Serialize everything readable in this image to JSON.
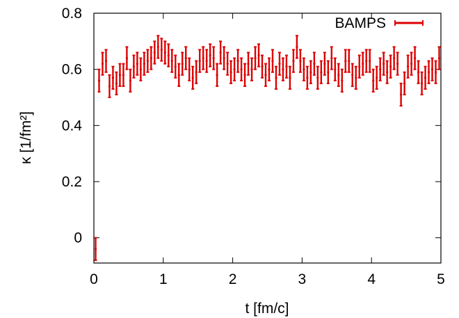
{
  "chart_data": {
    "type": "scatter",
    "title": "",
    "xlabel": "t [fm/c]",
    "ylabel": "κ [1/fm²]",
    "xlim": [
      0,
      5
    ],
    "ylim": [
      -0.09,
      0.8
    ],
    "xticks": [
      0,
      1,
      2,
      3,
      4,
      5
    ],
    "yticks": [
      0,
      0.2,
      0.4,
      0.6,
      0.8
    ],
    "grid": false,
    "legend_position": "top-right",
    "series": [
      {
        "name": "BAMPS",
        "color": "#dd0000",
        "x": [
          0.025,
          0.075,
          0.125,
          0.175,
          0.225,
          0.275,
          0.325,
          0.375,
          0.425,
          0.475,
          0.525,
          0.575,
          0.625,
          0.675,
          0.725,
          0.775,
          0.825,
          0.875,
          0.925,
          0.975,
          1.025,
          1.075,
          1.125,
          1.175,
          1.225,
          1.275,
          1.325,
          1.375,
          1.425,
          1.475,
          1.525,
          1.575,
          1.625,
          1.675,
          1.725,
          1.775,
          1.825,
          1.875,
          1.925,
          1.975,
          2.025,
          2.075,
          2.125,
          2.175,
          2.225,
          2.275,
          2.325,
          2.375,
          2.425,
          2.475,
          2.525,
          2.575,
          2.625,
          2.675,
          2.725,
          2.775,
          2.825,
          2.875,
          2.925,
          2.975,
          3.025,
          3.075,
          3.125,
          3.175,
          3.225,
          3.275,
          3.325,
          3.375,
          3.425,
          3.475,
          3.525,
          3.575,
          3.625,
          3.675,
          3.725,
          3.775,
          3.825,
          3.875,
          3.925,
          3.975,
          4.025,
          4.075,
          4.125,
          4.175,
          4.225,
          4.275,
          4.325,
          4.375,
          4.425,
          4.475,
          4.525,
          4.575,
          4.625,
          4.675,
          4.725,
          4.775,
          4.825,
          4.875,
          4.925,
          4.975
        ],
        "y": [
          -0.04,
          0.56,
          0.62,
          0.63,
          0.54,
          0.57,
          0.55,
          0.58,
          0.58,
          0.64,
          0.56,
          0.61,
          0.62,
          0.6,
          0.62,
          0.63,
          0.64,
          0.66,
          0.68,
          0.67,
          0.66,
          0.65,
          0.63,
          0.61,
          0.58,
          0.62,
          0.64,
          0.6,
          0.57,
          0.59,
          0.63,
          0.64,
          0.63,
          0.65,
          0.64,
          0.58,
          0.66,
          0.64,
          0.62,
          0.59,
          0.6,
          0.63,
          0.6,
          0.58,
          0.62,
          0.6,
          0.64,
          0.65,
          0.61,
          0.58,
          0.6,
          0.63,
          0.57,
          0.62,
          0.6,
          0.61,
          0.57,
          0.63,
          0.68,
          0.63,
          0.6,
          0.57,
          0.59,
          0.62,
          0.57,
          0.59,
          0.62,
          0.59,
          0.64,
          0.6,
          0.58,
          0.56,
          0.63,
          0.63,
          0.58,
          0.57,
          0.61,
          0.62,
          0.63,
          0.63,
          0.56,
          0.57,
          0.6,
          0.62,
          0.59,
          0.61,
          0.64,
          0.62,
          0.51,
          0.55,
          0.61,
          0.62,
          0.64,
          0.59,
          0.55,
          0.57,
          0.59,
          0.6,
          0.59,
          0.64
        ],
        "yerr": [
          0.04,
          0.04,
          0.04,
          0.04,
          0.04,
          0.04,
          0.04,
          0.04,
          0.04,
          0.04,
          0.04,
          0.04,
          0.04,
          0.04,
          0.04,
          0.04,
          0.04,
          0.04,
          0.04,
          0.04,
          0.04,
          0.04,
          0.04,
          0.04,
          0.04,
          0.04,
          0.04,
          0.04,
          0.04,
          0.04,
          0.04,
          0.04,
          0.04,
          0.04,
          0.04,
          0.04,
          0.04,
          0.04,
          0.04,
          0.04,
          0.04,
          0.04,
          0.04,
          0.04,
          0.04,
          0.04,
          0.04,
          0.04,
          0.04,
          0.04,
          0.04,
          0.04,
          0.04,
          0.04,
          0.04,
          0.04,
          0.04,
          0.04,
          0.04,
          0.04,
          0.04,
          0.04,
          0.04,
          0.04,
          0.04,
          0.04,
          0.04,
          0.04,
          0.04,
          0.04,
          0.04,
          0.04,
          0.04,
          0.04,
          0.04,
          0.04,
          0.04,
          0.04,
          0.04,
          0.04,
          0.04,
          0.04,
          0.04,
          0.04,
          0.04,
          0.04,
          0.04,
          0.04,
          0.04,
          0.04,
          0.04,
          0.04,
          0.04,
          0.04,
          0.04,
          0.04,
          0.04,
          0.04,
          0.04,
          0.04
        ]
      }
    ]
  }
}
